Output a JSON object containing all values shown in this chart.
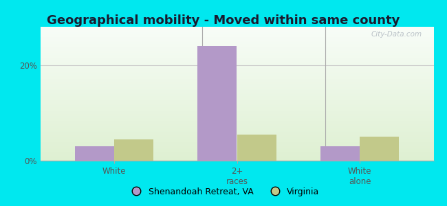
{
  "title": "Geographical mobility - Moved within same county",
  "categories": [
    "White",
    "2+\nraces",
    "White\nalone"
  ],
  "shenandoah_values": [
    3.0,
    24.0,
    3.0
  ],
  "virginia_values": [
    4.5,
    5.5,
    5.0
  ],
  "shenandoah_color": "#b399c8",
  "virginia_color": "#c2c98a",
  "background_color": "#00e8ef",
  "ylim": [
    0,
    28
  ],
  "yticks": [
    0,
    20
  ],
  "ytick_labels": [
    "0%",
    "20%"
  ],
  "legend_labels": [
    "Shenandoah Retreat, VA",
    "Virginia"
  ],
  "bar_width": 0.32,
  "title_fontsize": 13,
  "tick_fontsize": 8.5,
  "legend_fontsize": 9,
  "watermark": "City-Data.com"
}
